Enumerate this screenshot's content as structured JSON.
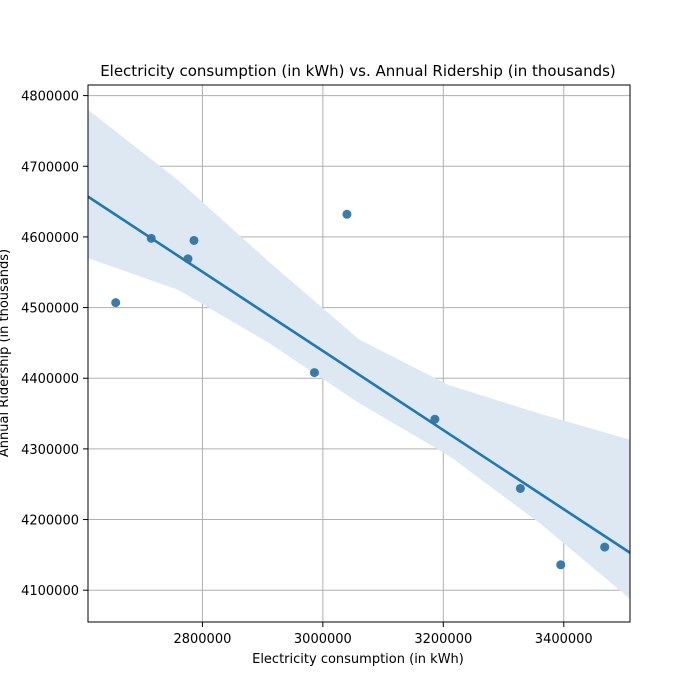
{
  "chart_data": {
    "type": "scatter",
    "title": "Electricity consumption (in kWh) vs. Annual Ridership (in thousands)",
    "xlabel": "Electricity consumption (in kWh)",
    "ylabel": "Annual Ridership (in thousands)",
    "xlim": [
      2610000,
      3510000
    ],
    "ylim": [
      4055000,
      4815000
    ],
    "xticks": [
      2800000,
      3000000,
      3200000,
      3400000
    ],
    "xtick_labels": [
      "2800000",
      "3000000",
      "3200000",
      "3400000"
    ],
    "yticks": [
      4100000,
      4200000,
      4300000,
      4400000,
      4500000,
      4600000,
      4700000,
      4800000
    ],
    "ytick_labels": [
      "4100000",
      "4200000",
      "4300000",
      "4400000",
      "4500000",
      "4600000",
      "4700000",
      "4800000"
    ],
    "grid": true,
    "points": [
      {
        "x": 2656000,
        "y": 4507000
      },
      {
        "x": 2715000,
        "y": 4598000
      },
      {
        "x": 2776000,
        "y": 4569000
      },
      {
        "x": 2786000,
        "y": 4595000
      },
      {
        "x": 2986000,
        "y": 4408000
      },
      {
        "x": 3040000,
        "y": 4632000
      },
      {
        "x": 3186000,
        "y": 4342000
      },
      {
        "x": 3328000,
        "y": 4244000
      },
      {
        "x": 3395000,
        "y": 4136000
      },
      {
        "x": 3468000,
        "y": 4161000
      }
    ],
    "regression_line": [
      {
        "x": 2610000,
        "y": 4657000
      },
      {
        "x": 3510000,
        "y": 4153000
      }
    ],
    "confidence_band": {
      "x": [
        2610000,
        2760000,
        2910000,
        3060000,
        3210000,
        3360000,
        3510000
      ],
      "upper": [
        4780000,
        4680000,
        4565000,
        4455000,
        4390000,
        4350000,
        4313000
      ],
      "lower": [
        4570000,
        4525000,
        4450000,
        4365000,
        4290000,
        4195000,
        4088000
      ]
    },
    "colors": {
      "points": "#3274a1",
      "line": "#1f77b4",
      "band": "#dde8f3",
      "grid": "#b0b0b0"
    }
  }
}
